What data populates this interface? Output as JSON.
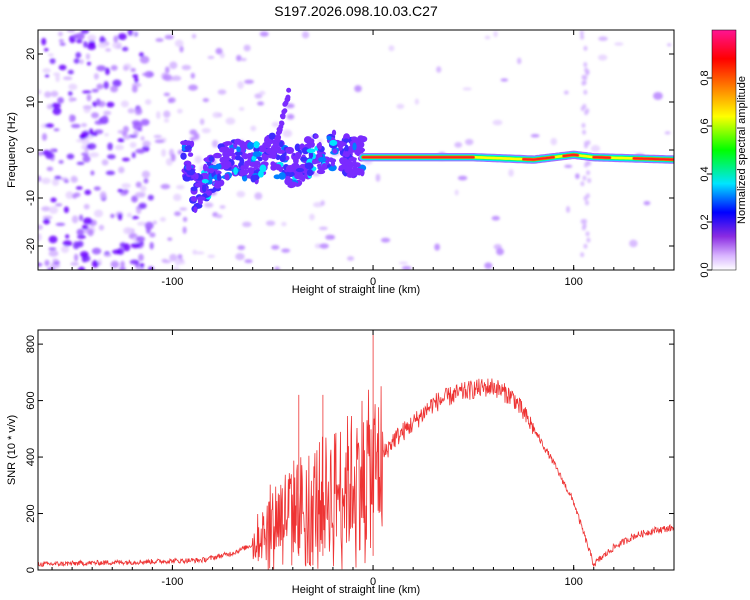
{
  "title": "S197.2026.098.10.03.C27",
  "chart_data": [
    {
      "type": "heatmap",
      "xlabel": "Height of straight line (km)",
      "ylabel": "Frequency (Hz)",
      "xlim": [
        -167,
        150
      ],
      "ylim": [
        -25,
        25
      ],
      "xticks": [
        -100,
        0,
        100
      ],
      "xtick_labels": [
        "-100",
        "0",
        "100"
      ],
      "yticks": [
        -20,
        -10,
        0,
        10,
        20
      ],
      "ytick_labels": [
        "-20",
        "-10",
        "0",
        "10",
        "20"
      ],
      "colorbar": {
        "label": "Normalized spectral amplitude",
        "range": [
          0,
          1
        ],
        "ticks": [
          0,
          0.2,
          0.4,
          0.6,
          0.8
        ],
        "tick_labels": [
          "0.0",
          "0.2",
          "0.4",
          "0.6",
          "0.8"
        ],
        "colors": [
          "#ffffff",
          "#d8b4ff",
          "#8a2be2",
          "#0000ff",
          "#00e5ff",
          "#00ff00",
          "#ffff00",
          "#ff8000",
          "#ff0000",
          "#ff1493"
        ]
      },
      "ridge": {
        "description_points_x": [
          -90,
          -80,
          -70,
          -60,
          -50,
          -40,
          -30,
          -20,
          -10,
          0,
          50,
          80,
          100,
          110,
          150
        ],
        "description_points_y": [
          -9,
          -5,
          -1,
          -3,
          -1,
          -4,
          -1,
          0,
          -1.5,
          -1.5,
          -1.5,
          -2,
          -1,
          -1.5,
          -2
        ]
      },
      "colors": {
        "noise": "#9b59ff",
        "ridge_core": "#ff2020"
      }
    },
    {
      "type": "line",
      "xlabel": "Height of straight line (km)",
      "ylabel": "SNR (10 * v/v)",
      "xlim": [
        -167,
        150
      ],
      "ylim": [
        0,
        850
      ],
      "xticks": [
        -100,
        0,
        100
      ],
      "xtick_labels": [
        "-100",
        "0",
        "100"
      ],
      "yticks": [
        0,
        200,
        400,
        600,
        800
      ],
      "ytick_labels": [
        "0",
        "200",
        "400",
        "600",
        "800"
      ],
      "series": [
        {
          "name": "SNR",
          "color": "#ee3333",
          "x": [
            -167,
            -140,
            -110,
            -85,
            -70,
            -60,
            -50,
            -40,
            -30,
            -20,
            -10,
            -5,
            0,
            10,
            20,
            30,
            40,
            50,
            60,
            70,
            80,
            90,
            100,
            110,
            120,
            130,
            140,
            150
          ],
          "y": [
            20,
            25,
            30,
            35,
            60,
            90,
            180,
            220,
            250,
            280,
            320,
            360,
            350,
            460,
            520,
            590,
            620,
            640,
            650,
            610,
            500,
            380,
            240,
            20,
            80,
            120,
            140,
            150
          ]
        }
      ],
      "spikes": [
        {
          "x": -37,
          "y": 620
        },
        {
          "x": -25,
          "y": 620
        },
        {
          "x": 0,
          "y": 850
        }
      ]
    }
  ]
}
